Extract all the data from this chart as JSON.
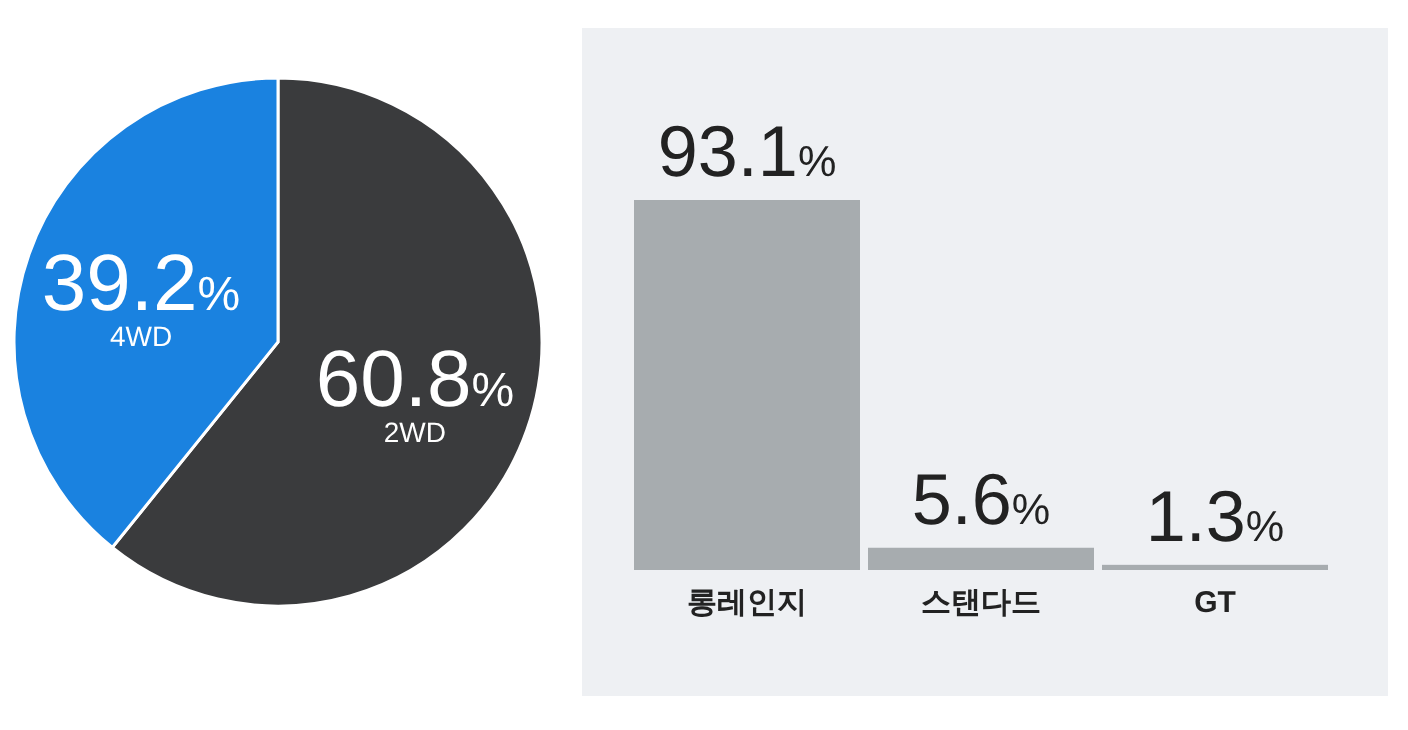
{
  "chart_data": [
    {
      "type": "pie",
      "categories": [
        "2WD",
        "4WD"
      ],
      "values": [
        60.8,
        39.2
      ],
      "colors": [
        "#3a3b3d",
        "#1a82e0"
      ],
      "value_labels": [
        "60.8%",
        "39.2%"
      ]
    },
    {
      "type": "bar",
      "categories": [
        "롱레인지",
        "스탠다드",
        "GT"
      ],
      "values": [
        93.1,
        5.6,
        1.3
      ],
      "color": "#a7acaf",
      "value_labels": [
        "93.1%",
        "5.6%",
        "1.3%"
      ]
    }
  ]
}
